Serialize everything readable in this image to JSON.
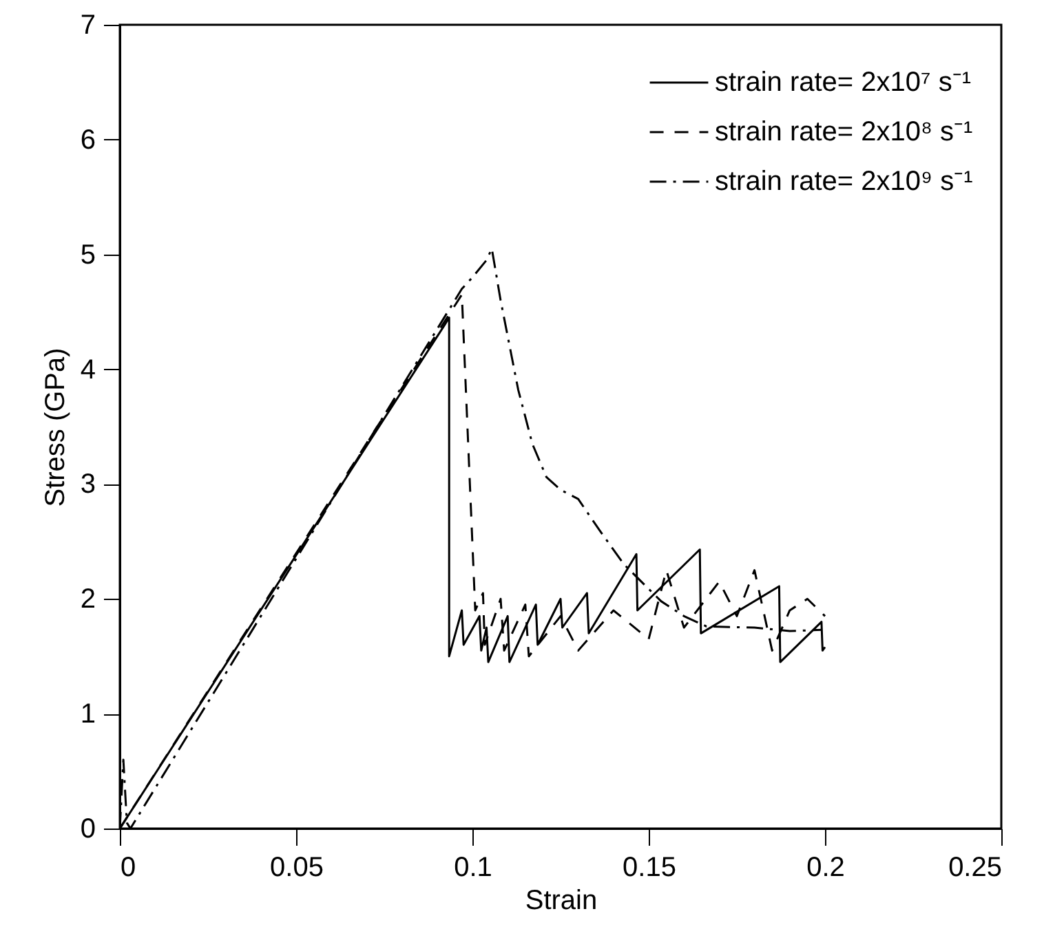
{
  "chart_data": {
    "type": "line",
    "xlabel": "Strain",
    "ylabel": "Stress (GPa)",
    "xlim": [
      0,
      0.25
    ],
    "xticks": [
      0,
      0.05,
      0.1,
      0.15,
      0.2,
      0.25
    ],
    "ylim": [
      0,
      7
    ],
    "yticks": [
      0,
      1,
      2,
      3,
      4,
      5,
      6,
      7
    ],
    "legend": "top right",
    "grid": false,
    "series": [
      {
        "name": "strain rate= 2x10⁷ s⁻¹",
        "color": "#000000",
        "line_style": "solid",
        "x": [
          0,
          0.092,
          0.0934,
          0.0934,
          0.097,
          0.0975,
          0.102,
          0.1025,
          0.104,
          0.1045,
          0.11,
          0.1105,
          0.118,
          0.1185,
          0.125,
          0.1255,
          0.1325,
          0.133,
          0.1465,
          0.1468,
          0.1645,
          0.1648,
          0.187,
          0.1873,
          0.199,
          0.1993,
          0.2
        ],
        "values": [
          0,
          4.38,
          4.45,
          1.5,
          1.9,
          1.6,
          1.85,
          1.55,
          1.75,
          1.45,
          1.85,
          1.45,
          1.95,
          1.6,
          2.0,
          1.75,
          2.05,
          1.7,
          2.39,
          1.9,
          2.43,
          1.7,
          2.11,
          1.45,
          1.8,
          1.55,
          1.58
        ]
      },
      {
        "name": "strain rate= 2x10⁸ s⁻¹",
        "color": "#000000",
        "line_style": "dashed",
        "x": [
          0,
          0.097,
          0.1008,
          0.103,
          0.1035,
          0.108,
          0.109,
          0.115,
          0.116,
          0.125,
          0.13,
          0.14,
          0.15,
          0.155,
          0.16,
          0.17,
          0.175,
          0.18,
          0.185,
          0.19,
          0.195,
          0.2
        ],
        "values": [
          0,
          4.65,
          1.9,
          2.05,
          1.6,
          2.0,
          1.55,
          1.95,
          1.5,
          1.85,
          1.55,
          1.9,
          1.65,
          2.25,
          1.75,
          2.15,
          1.85,
          2.25,
          1.55,
          1.9,
          2.0,
          1.85
        ]
      },
      {
        "name": "strain rate= 2x10⁹ s⁻¹",
        "color": "#000000",
        "line_style": "dashdot",
        "x": [
          0,
          0.001,
          0.002,
          0.003,
          0.097,
          0.1,
          0.104,
          0.1055,
          0.108,
          0.113,
          0.117,
          0.121,
          0.125,
          0.13,
          0.136,
          0.143,
          0.1535,
          0.16,
          0.1664,
          0.18,
          0.19,
          0.199
        ],
        "values": [
          0,
          0.6,
          0.05,
          0,
          4.7,
          4.8,
          4.95,
          5.05,
          4.6,
          3.82,
          3.35,
          3.06,
          2.95,
          2.87,
          2.6,
          2.3,
          1.98,
          1.85,
          1.76,
          1.75,
          1.72,
          1.73
        ]
      }
    ]
  }
}
